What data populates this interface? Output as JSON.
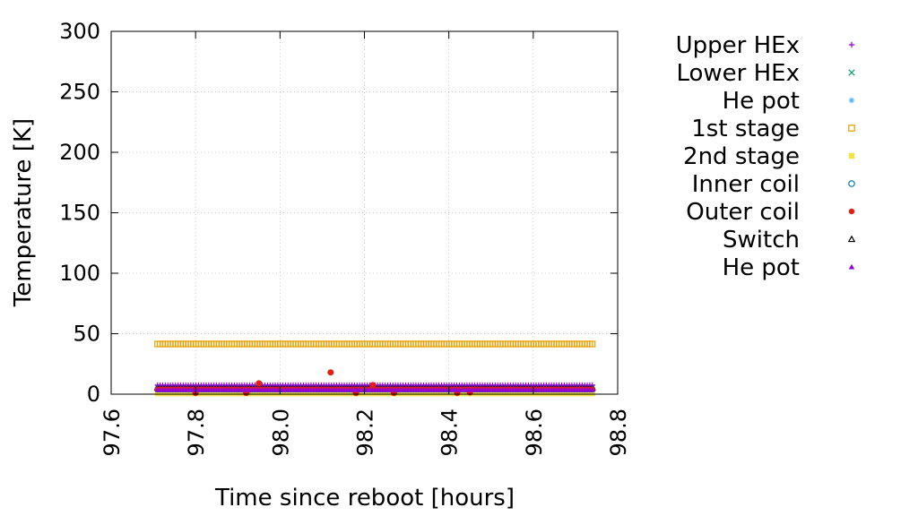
{
  "chart_data": {
    "type": "scatter",
    "title": "",
    "xlabel": "Time since reboot [hours]",
    "ylabel": "Temperature [K]",
    "xlim": [
      97.6,
      98.8
    ],
    "ylim": [
      0,
      300
    ],
    "xticks": [
      "97.6",
      "97.8",
      "98.0",
      "98.2",
      "98.4",
      "98.6",
      "98.8"
    ],
    "yticks": [
      "0",
      "50",
      "100",
      "150",
      "200",
      "250",
      "300"
    ],
    "grid": true,
    "legend_position": "right-outside",
    "series": [
      {
        "name": "Upper HEx",
        "marker": "plus",
        "color": "#9400d3",
        "x_range": [
          97.71,
          98.74
        ],
        "value": 7.5
      },
      {
        "name": "Lower HEx",
        "marker": "cross",
        "color": "#009e73",
        "x_range": [
          97.71,
          98.74
        ],
        "value": 5.5
      },
      {
        "name": "He pot",
        "marker": "asterisk",
        "color": "#56b4e9",
        "x_range": [
          97.71,
          98.74
        ],
        "value": 4.5
      },
      {
        "name": "1st stage",
        "marker": "open-square",
        "color": "#e69f00",
        "x_range": [
          97.71,
          98.74
        ],
        "value": 41.5
      },
      {
        "name": "2nd stage",
        "marker": "filled-square",
        "color": "#f0e442",
        "x_range": [
          97.71,
          98.74
        ],
        "value": 0.5
      },
      {
        "name": "Inner coil",
        "marker": "open-circle",
        "color": "#0072b2",
        "x_range": [
          97.71,
          98.74
        ],
        "value": 4.0
      },
      {
        "name": "Outer coil",
        "marker": "filled-circle",
        "color": "#e51e10",
        "x_range": [
          97.71,
          98.74
        ],
        "value": 4.0,
        "outliers": [
          [
            97.95,
            9.0
          ],
          [
            98.12,
            18.0
          ],
          [
            98.22,
            7.5
          ],
          [
            97.92,
            1.0
          ],
          [
            98.18,
            1.0
          ],
          [
            98.42,
            1.0
          ],
          [
            98.45,
            1.5
          ],
          [
            97.8,
            1.0
          ],
          [
            98.27,
            1.0
          ]
        ]
      },
      {
        "name": "Switch",
        "marker": "open-triangle",
        "color": "#000000",
        "x_range": [
          97.71,
          98.74
        ],
        "value": 5.0
      },
      {
        "name": "He pot",
        "marker": "filled-triangle",
        "color": "#9400d3",
        "x_range": [
          97.71,
          98.74
        ],
        "value": 3.5
      }
    ]
  }
}
